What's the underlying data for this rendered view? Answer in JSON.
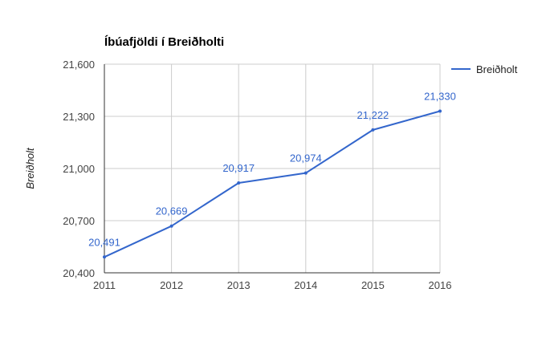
{
  "chart_data": {
    "type": "line",
    "title": "Íbúafjöldi í Breiðholti",
    "xlabel": "",
    "ylabel": "Breiðholt",
    "x": [
      "2011",
      "2012",
      "2013",
      "2014",
      "2015",
      "2016"
    ],
    "series": [
      {
        "name": "Breiðholt",
        "values": [
          20491,
          20669,
          20917,
          20974,
          21222,
          21330
        ],
        "labels": [
          "20,491",
          "20,669",
          "20,917",
          "20,974",
          "21,222",
          "21,330"
        ]
      }
    ],
    "ylim": [
      20400,
      21600
    ],
    "yticks": [
      20400,
      20700,
      21000,
      21300,
      21600
    ],
    "ytick_labels": [
      "20,400",
      "20,700",
      "21,000",
      "21,300",
      "21,600"
    ],
    "grid": true,
    "legend_position": "right",
    "colors": {
      "series": "#3366cc",
      "grid": "#cccccc",
      "axis": "#333333"
    }
  }
}
